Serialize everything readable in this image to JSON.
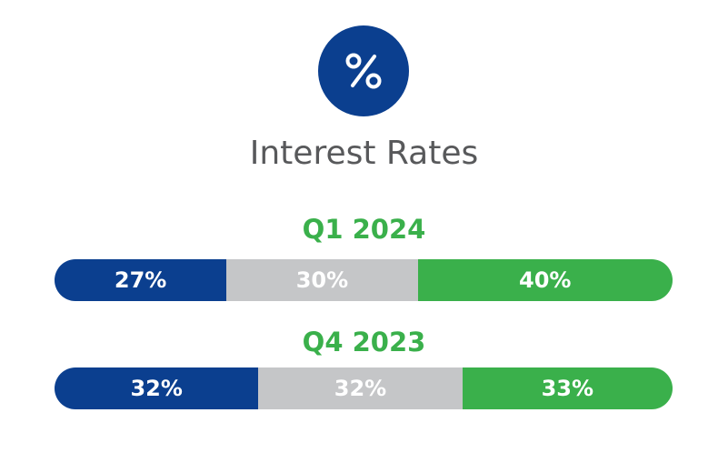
{
  "header": {
    "icon": "percent-icon",
    "icon_bg": "#0b3f8f",
    "title": "Interest Rates"
  },
  "colors": {
    "blue": "#0b3f8f",
    "gray": "#c5c6c8",
    "green": "#3ab04b",
    "title": "#58595b"
  },
  "chart_data": {
    "type": "bar",
    "orientation": "horizontal",
    "stacked": true,
    "title": "Interest Rates",
    "categories": [
      "Q1 2024",
      "Q4 2023"
    ],
    "series": [
      {
        "color": "#0b3f8f",
        "values": [
          27,
          32
        ],
        "labels": [
          "27%",
          "32%"
        ]
      },
      {
        "color": "#c5c6c8",
        "values": [
          30,
          32
        ],
        "labels": [
          "30%",
          "32%"
        ]
      },
      {
        "color": "#3ab04b",
        "values": [
          40,
          33
        ],
        "labels": [
          "40%",
          "33%"
        ]
      }
    ]
  }
}
